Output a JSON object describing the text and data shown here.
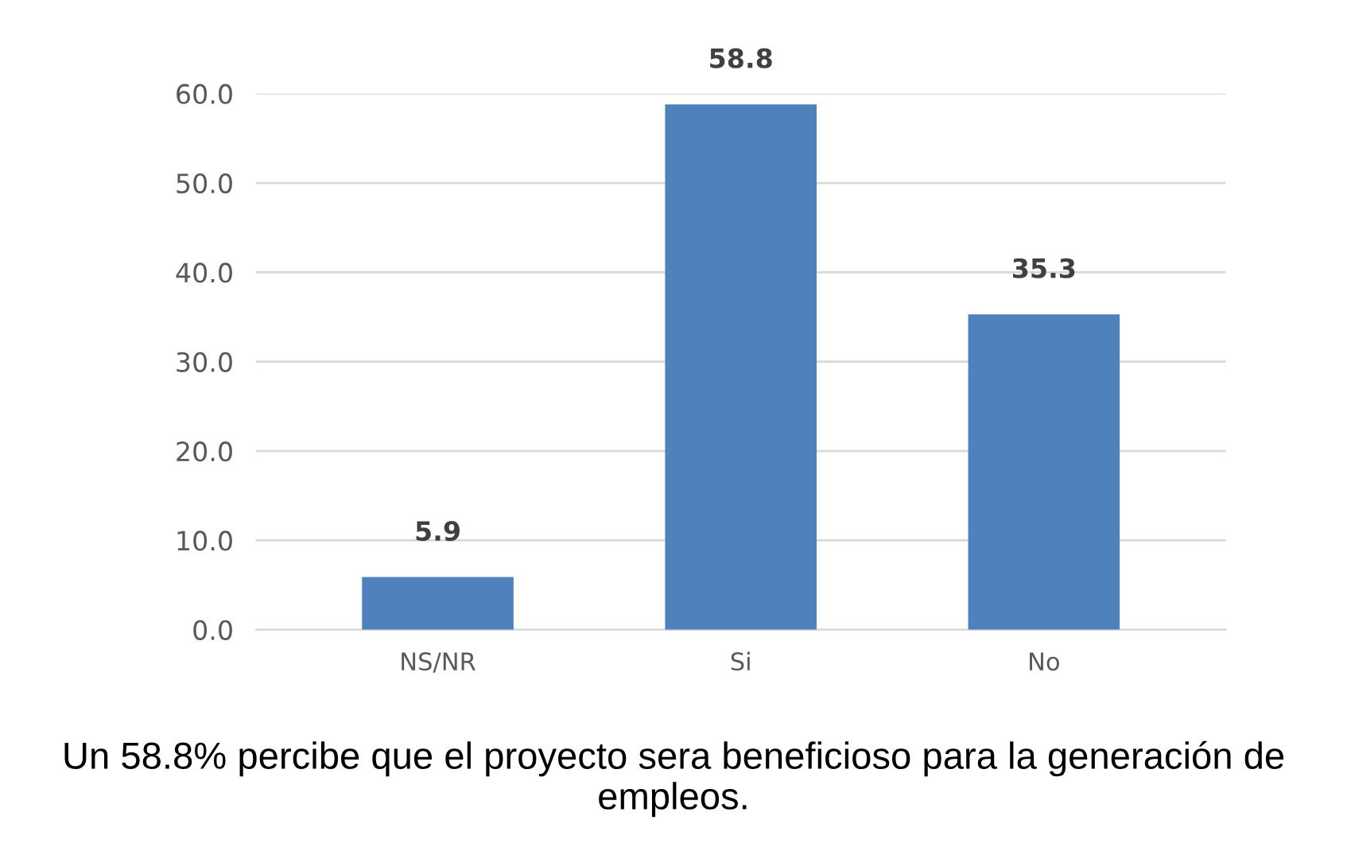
{
  "chart_data": {
    "type": "bar",
    "categories": [
      "NS/NR",
      "Si",
      "No"
    ],
    "values": [
      5.9,
      58.8,
      35.3
    ],
    "color": "#4f81bd",
    "data_labels": true,
    "ylim": [
      0,
      60
    ],
    "yticks": [
      {
        "value": 0,
        "label": "0.0"
      },
      {
        "value": 10,
        "label": "10.0"
      },
      {
        "value": 20,
        "label": "20.0"
      },
      {
        "value": 30,
        "label": "30.0"
      },
      {
        "value": 40,
        "label": "40.0"
      },
      {
        "value": 50,
        "label": "50.0"
      },
      {
        "value": 60,
        "label": "60.0"
      }
    ],
    "grid": "y",
    "annotations": [
      "Un 58.8% percibe que el proyecto sera beneficioso para la generación de empleos."
    ]
  }
}
